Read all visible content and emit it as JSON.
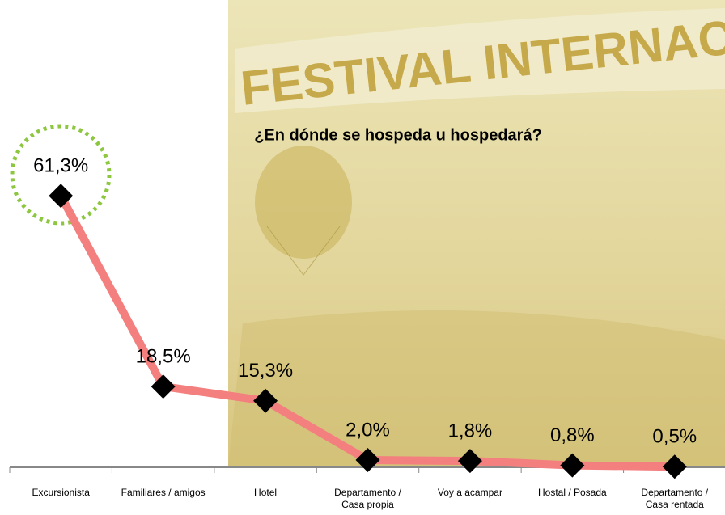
{
  "chart_data": {
    "type": "line",
    "title": "¿En dónde se hospeda u hospedará?",
    "annotations": [
      "FESTIVAL INTERNAC"
    ],
    "categories": [
      "Excursionista",
      "Familiares / amigos",
      "Hotel",
      "Departamento / Casa propia",
      "Voy a acampar",
      "Hostal / Posada",
      "Departamento / Casa rentada"
    ],
    "values": [
      61.3,
      18.5,
      15.3,
      2.0,
      1.8,
      0.8,
      0.5
    ],
    "value_labels": [
      "61,3%",
      "18,5%",
      "15,3%",
      "2,0%",
      "1,8%",
      "0,8%",
      "0,5%"
    ],
    "color": "#f47f7f",
    "marker_color": "#000000"
  }
}
